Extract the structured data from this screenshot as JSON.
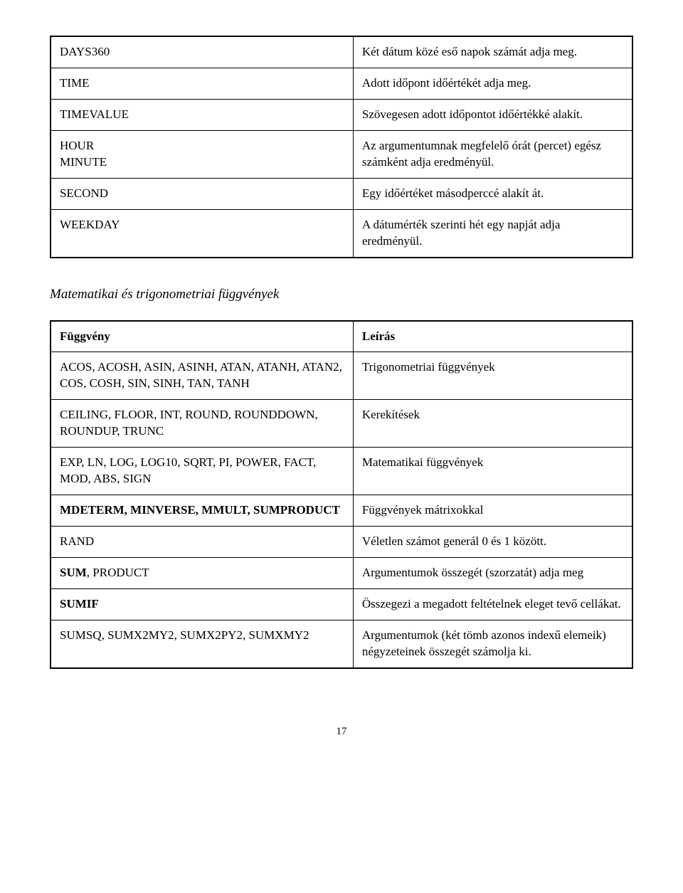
{
  "table1": {
    "rows": [
      {
        "fn": "DAYS360",
        "desc": "Két dátum közé eső napok számát adja meg."
      },
      {
        "fn": "TIME",
        "desc": "Adott időpont időértékét adja meg."
      },
      {
        "fn": "TIMEVALUE",
        "desc": "Szövegesen adott időpontot időértékké alakít."
      },
      {
        "fn": "HOUR\nMINUTE",
        "desc": "Az argumentumnak megfelelő órát (percet) egész számként adja eredményül."
      },
      {
        "fn": "SECOND",
        "desc": "Egy időértéket másodperccé alakít át."
      },
      {
        "fn": "WEEKDAY",
        "desc": "A dátumérték szerinti hét egy napját adja eredményül."
      }
    ]
  },
  "section_title": "Matematikai és trigonometriai függvények",
  "table2": {
    "header": {
      "fn": "Függvény",
      "desc": "Leírás"
    },
    "rows": [
      {
        "fn": "ACOS, ACOSH, ASIN, ASINH, ATAN, ATANH, ATAN2, COS, COSH, SIN, SINH, TAN, TANH",
        "desc": "Trigonometriai függvények"
      },
      {
        "fn": "CEILING, FLOOR, INT, ROUND, ROUNDDOWN, ROUNDUP, TRUNC",
        "desc": "Kerekítések"
      },
      {
        "fn": "EXP, LN, LOG, LOG10, SQRT, PI, POWER, FACT, MOD, ABS, SIGN",
        "desc": "Matematikai függvények"
      },
      {
        "fn": "MDETERM, MINVERSE, MMULT, SUMPRODUCT",
        "fn_bold": true,
        "desc": "Függvények mátrixokkal"
      },
      {
        "fn": "RAND",
        "desc": "Véletlen számot generál 0 és 1 között."
      },
      {
        "fn_prefix_bold": "SUM",
        "fn_rest": ", PRODUCT",
        "desc": "Argumentumok összegét (szorzatát) adja meg"
      },
      {
        "fn": "SUMIF",
        "fn_bold": true,
        "desc": "Összegezi a megadott feltételnek eleget tevő cellákat."
      },
      {
        "fn": "SUMSQ, SUMX2MY2, SUMX2PY2, SUMXMY2",
        "desc": "Argumentumok (két tömb azonos indexű elemeik) négyzeteinek összegét számolja ki."
      }
    ]
  },
  "page_number": "17"
}
